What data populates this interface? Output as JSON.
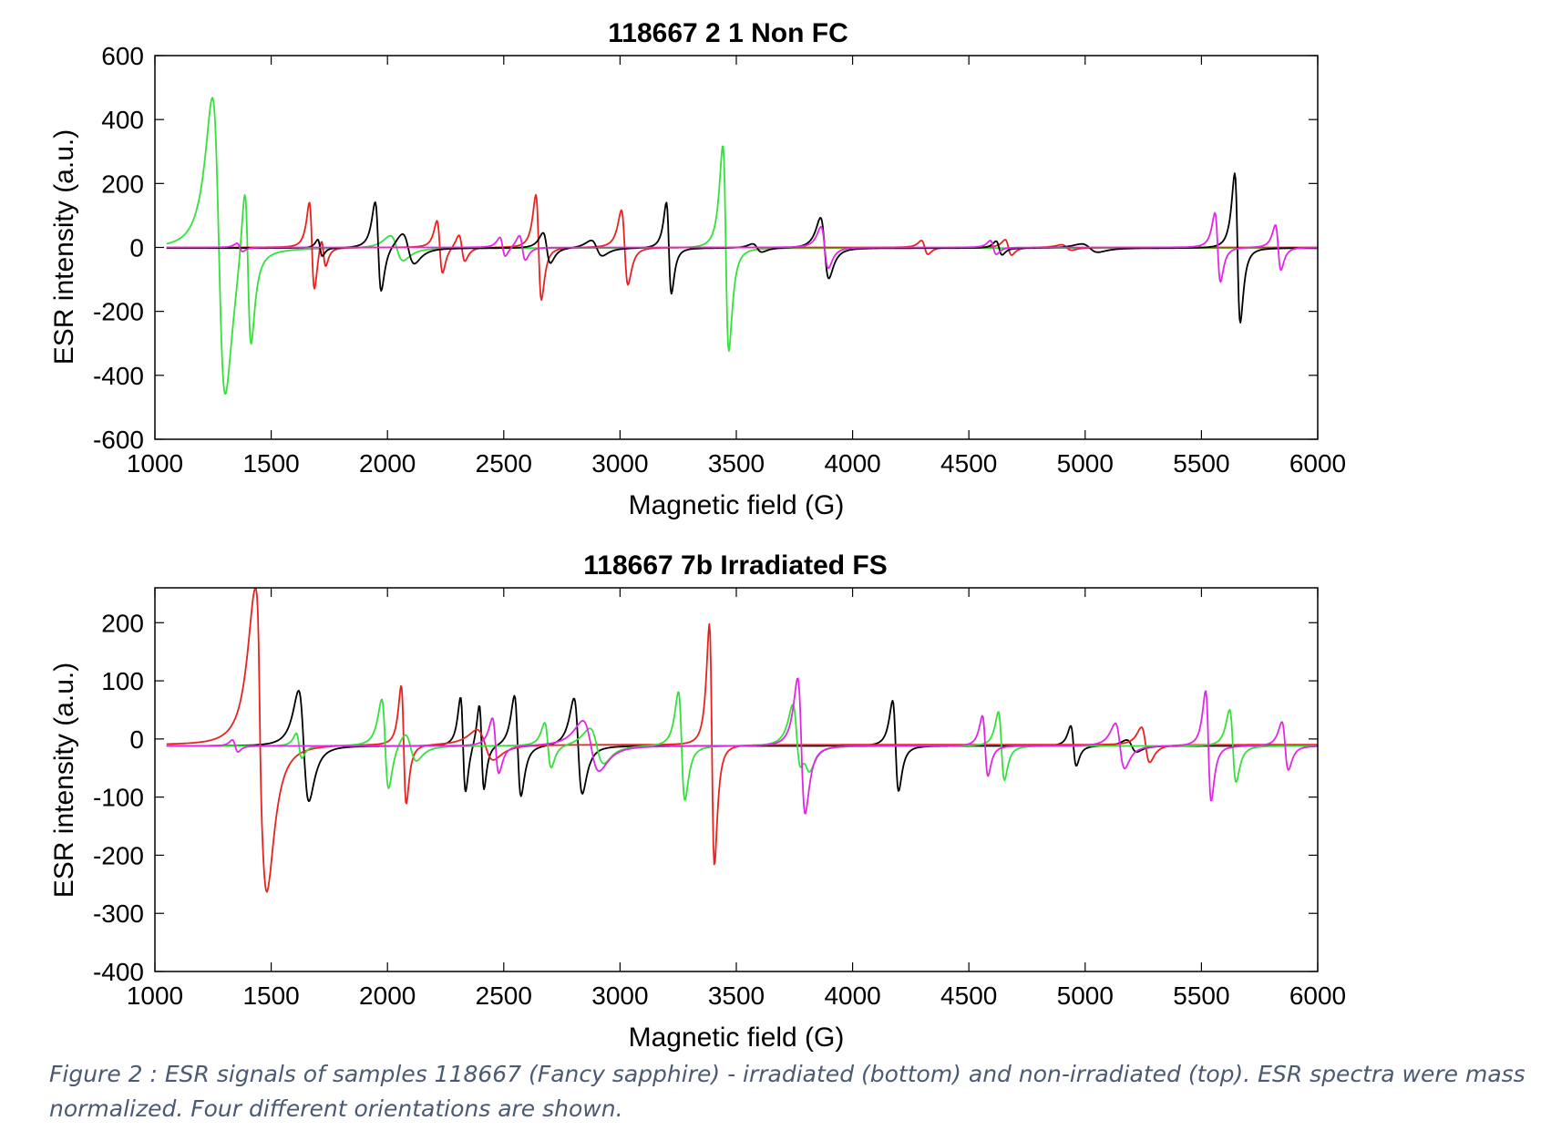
{
  "figure": {
    "caption": "Figure 2 : ESR signals of samples 118667 (Fancy sapphire) - irradiated (bottom) and non-irradiated (top). ESR spectra were mass normalized. Four different orientations are shown."
  },
  "colors": {
    "black": "#000000",
    "red": "#e8231f",
    "green": "#33e13a",
    "magenta": "#e126e6"
  },
  "chart_data": [
    {
      "type": "line",
      "title": "118667 2 1 Non FC",
      "xlabel": "Magnetic field (G)",
      "ylabel": "ESR intensity (a.u.)",
      "xlim": [
        1000,
        6000
      ],
      "ylim": [
        -600,
        600
      ],
      "xticks": [
        1000,
        1500,
        2000,
        2500,
        3000,
        3500,
        4000,
        4500,
        5000,
        5500,
        6000
      ],
      "yticks": [
        -600,
        -400,
        -200,
        0,
        200,
        400,
        600
      ],
      "series": [
        {
          "name": "green",
          "color": "green",
          "baseline": -2,
          "lines": [
            {
              "x": 1275,
              "w": 28,
              "a": 540
            },
            {
              "x": 1400,
              "w": 14,
              "a": 290
            },
            {
              "x": 2040,
              "w": 28,
              "a": 45
            },
            {
              "x": 3455,
              "w": 13,
              "a": 372
            }
          ]
        },
        {
          "name": "red",
          "color": "red",
          "baseline": 0,
          "lines": [
            {
              "x": 1675,
              "w": 11,
              "a": 160
            },
            {
              "x": 1725,
              "w": 10,
              "a": 55
            },
            {
              "x": 2225,
              "w": 12,
              "a": 95
            },
            {
              "x": 2320,
              "w": 13,
              "a": 48
            },
            {
              "x": 2650,
              "w": 12,
              "a": 190
            },
            {
              "x": 3020,
              "w": 14,
              "a": 135
            },
            {
              "x": 4310,
              "w": 14,
              "a": 25
            },
            {
              "x": 4670,
              "w": 14,
              "a": 28
            },
            {
              "x": 4920,
              "w": 22,
              "a": 10
            }
          ]
        },
        {
          "name": "black",
          "color": "black",
          "baseline": -2,
          "lines": [
            {
              "x": 1710,
              "w": 10,
              "a": 30
            },
            {
              "x": 1960,
              "w": 13,
              "a": 162
            },
            {
              "x": 2090,
              "w": 26,
              "a": 55
            },
            {
              "x": 2685,
              "w": 16,
              "a": 55
            },
            {
              "x": 2900,
              "w": 24,
              "a": 28
            },
            {
              "x": 3210,
              "w": 11,
              "a": 165
            },
            {
              "x": 3590,
              "w": 20,
              "a": 15
            },
            {
              "x": 3880,
              "w": 18,
              "a": 110
            },
            {
              "x": 4630,
              "w": 13,
              "a": 25
            },
            {
              "x": 5020,
              "w": 35,
              "a": 15
            },
            {
              "x": 5655,
              "w": 12,
              "a": 270
            }
          ]
        },
        {
          "name": "magenta",
          "color": "magenta",
          "baseline": 0,
          "lines": [
            {
              "x": 1365,
              "w": 12,
              "a": 15
            },
            {
              "x": 2495,
              "w": 12,
              "a": 35
            },
            {
              "x": 2580,
              "w": 13,
              "a": 45
            },
            {
              "x": 3880,
              "w": 16,
              "a": 75
            },
            {
              "x": 4605,
              "w": 13,
              "a": 25
            },
            {
              "x": 5570,
              "w": 12,
              "a": 125
            },
            {
              "x": 5830,
              "w": 12,
              "a": 82
            }
          ]
        }
      ]
    },
    {
      "type": "line",
      "title": "118667 7b Irradiated FS",
      "xlabel": "Magnetic field (G)",
      "ylabel": "ESR intensity (a.u.)",
      "xlim": [
        1000,
        6000
      ],
      "ylim": [
        -400,
        260
      ],
      "xticks": [
        1000,
        1500,
        2000,
        2500,
        3000,
        3500,
        4000,
        4500,
        5000,
        5500,
        6000
      ],
      "yticks": [
        -400,
        -300,
        -200,
        -100,
        0,
        100,
        200
      ],
      "series": [
        {
          "name": "black",
          "color": "black",
          "baseline": -12,
          "lines": [
            {
              "x": 1640,
              "w": 22,
              "a": 110
            },
            {
              "x": 2325,
              "w": 11,
              "a": 95
            },
            {
              "x": 2405,
              "w": 10,
              "a": 85
            },
            {
              "x": 2560,
              "w": 14,
              "a": 100
            },
            {
              "x": 2820,
              "w": 18,
              "a": 95
            },
            {
              "x": 4185,
              "w": 13,
              "a": 90
            },
            {
              "x": 4950,
              "w": 12,
              "a": 40
            },
            {
              "x": 5200,
              "w": 22,
              "a": 12
            }
          ]
        },
        {
          "name": "red",
          "color": "red",
          "baseline": -10,
          "lines": [
            {
              "x": 1455,
              "w": 28,
              "a": 280
            },
            {
              "x": 1450,
              "w": 8,
              "a": 70
            },
            {
              "x": 2070,
              "w": 11,
              "a": 118
            },
            {
              "x": 3395,
              "w": 11,
              "a": 240
            },
            {
              "x": 2420,
              "w": 35,
              "a": 30
            },
            {
              "x": 5260,
              "w": 18,
              "a": 35
            }
          ]
        },
        {
          "name": "green",
          "color": "green",
          "baseline": -12,
          "lines": [
            {
              "x": 1620,
              "w": 12,
              "a": 25
            },
            {
              "x": 1990,
              "w": 15,
              "a": 90
            },
            {
              "x": 2100,
              "w": 25,
              "a": 28
            },
            {
              "x": 2690,
              "w": 14,
              "a": 45
            },
            {
              "x": 2900,
              "w": 30,
              "a": 35
            },
            {
              "x": 3265,
              "w": 14,
              "a": 108
            },
            {
              "x": 3760,
              "w": 18,
              "a": 72
            },
            {
              "x": 3800,
              "w": 20,
              "a": 30
            },
            {
              "x": 4640,
              "w": 13,
              "a": 68
            },
            {
              "x": 5635,
              "w": 14,
              "a": 72
            }
          ]
        },
        {
          "name": "magenta",
          "color": "magenta",
          "baseline": -12,
          "lines": [
            {
              "x": 1345,
              "w": 12,
              "a": 12
            },
            {
              "x": 2465,
              "w": 14,
              "a": 55
            },
            {
              "x": 2875,
              "w": 35,
              "a": 50
            },
            {
              "x": 3780,
              "w": 16,
              "a": 135
            },
            {
              "x": 4570,
              "w": 12,
              "a": 60
            },
            {
              "x": 5150,
              "w": 20,
              "a": 45
            },
            {
              "x": 5530,
              "w": 12,
              "a": 110
            },
            {
              "x": 5860,
              "w": 14,
              "a": 48
            }
          ]
        }
      ]
    }
  ]
}
